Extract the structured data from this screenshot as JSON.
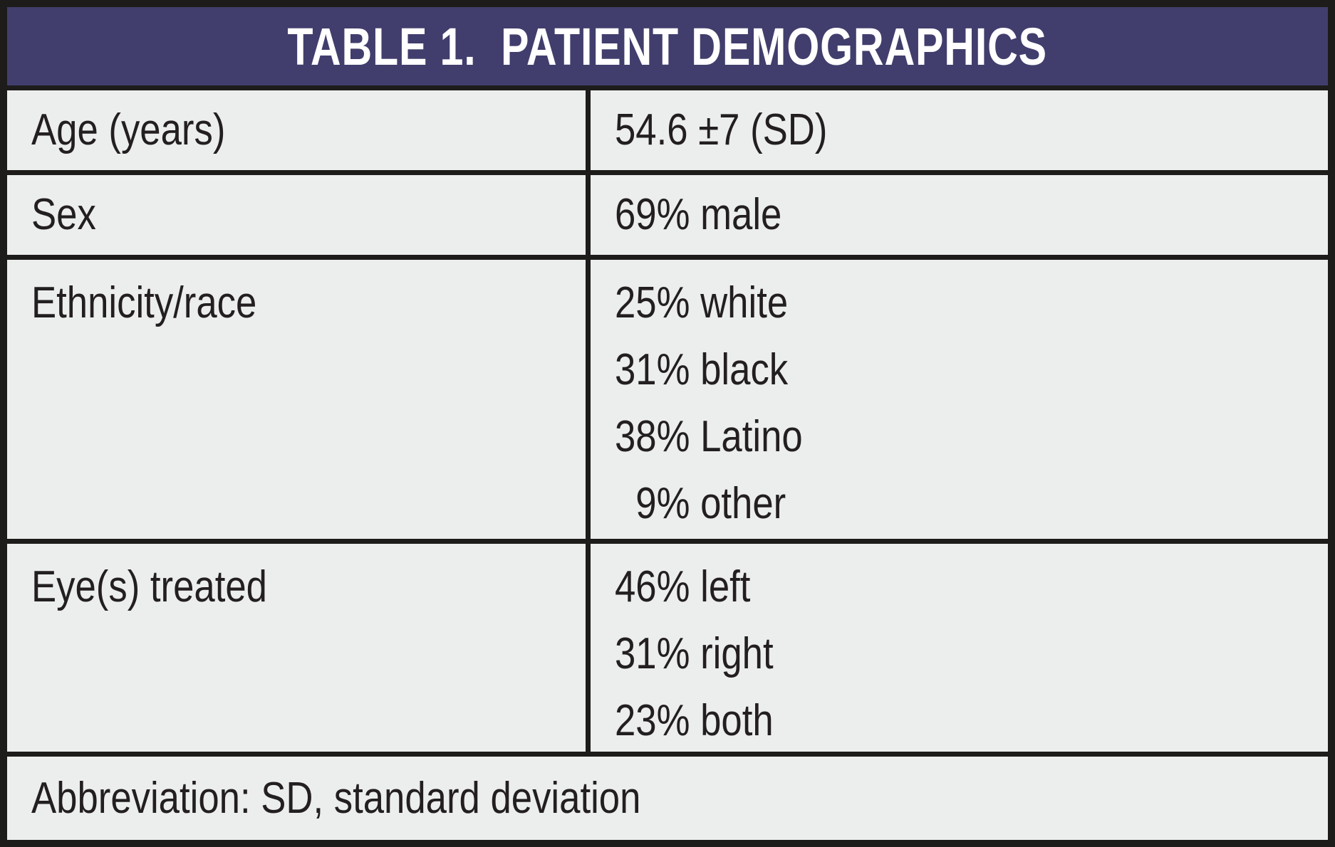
{
  "table": {
    "title": "TABLE 1.  PATIENT DEMOGRAPHICS",
    "rows": [
      {
        "label": "Age (years)",
        "values": [
          "54.6 ±7 (SD)"
        ]
      },
      {
        "label": "Sex",
        "values": [
          "69% male"
        ]
      },
      {
        "label": "Ethnicity/race",
        "values": [
          "25% white",
          "31% black",
          "38% Latino",
          "  9% other"
        ]
      },
      {
        "label": "Eye(s) treated",
        "values": [
          "46% left",
          "31% right",
          "23% both"
        ]
      }
    ],
    "footnote": "Abbreviation: SD, standard deviation"
  },
  "colors": {
    "frame": "#1d1c1b",
    "header_bg": "#413e6d",
    "header_text": "#ffffff",
    "cell_bg": "#eceeed",
    "body_text": "#231f20"
  }
}
